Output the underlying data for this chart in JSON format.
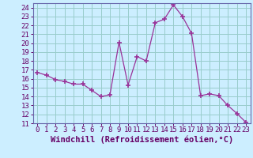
{
  "x": [
    0,
    1,
    2,
    3,
    4,
    5,
    6,
    7,
    8,
    9,
    10,
    11,
    12,
    13,
    14,
    15,
    16,
    17,
    18,
    19,
    20,
    21,
    22,
    23
  ],
  "y": [
    16.7,
    16.4,
    15.9,
    15.7,
    15.4,
    15.4,
    14.7,
    14.0,
    14.2,
    20.1,
    15.3,
    18.5,
    18.0,
    22.3,
    22.7,
    24.3,
    23.0,
    21.1,
    14.1,
    14.3,
    14.1,
    13.0,
    12.1,
    11.1
  ],
  "line_color": "#993399",
  "marker": "+",
  "marker_size": 4,
  "bg_color": "#cceeff",
  "grid_color": "#99cccc",
  "xlabel": "Windchill (Refroidissement éolien,°C)",
  "ylim": [
    11,
    24.5
  ],
  "yticks": [
    11,
    12,
    13,
    14,
    15,
    16,
    17,
    18,
    19,
    20,
    21,
    22,
    23,
    24
  ],
  "xticks": [
    0,
    1,
    2,
    3,
    4,
    5,
    6,
    7,
    8,
    9,
    10,
    11,
    12,
    13,
    14,
    15,
    16,
    17,
    18,
    19,
    20,
    21,
    22,
    23
  ],
  "xlim": [
    -0.5,
    23.5
  ],
  "axis_color": "#6666aa",
  "tick_fontsize": 6.5,
  "xlabel_fontsize": 7.5,
  "label_color": "#660066"
}
